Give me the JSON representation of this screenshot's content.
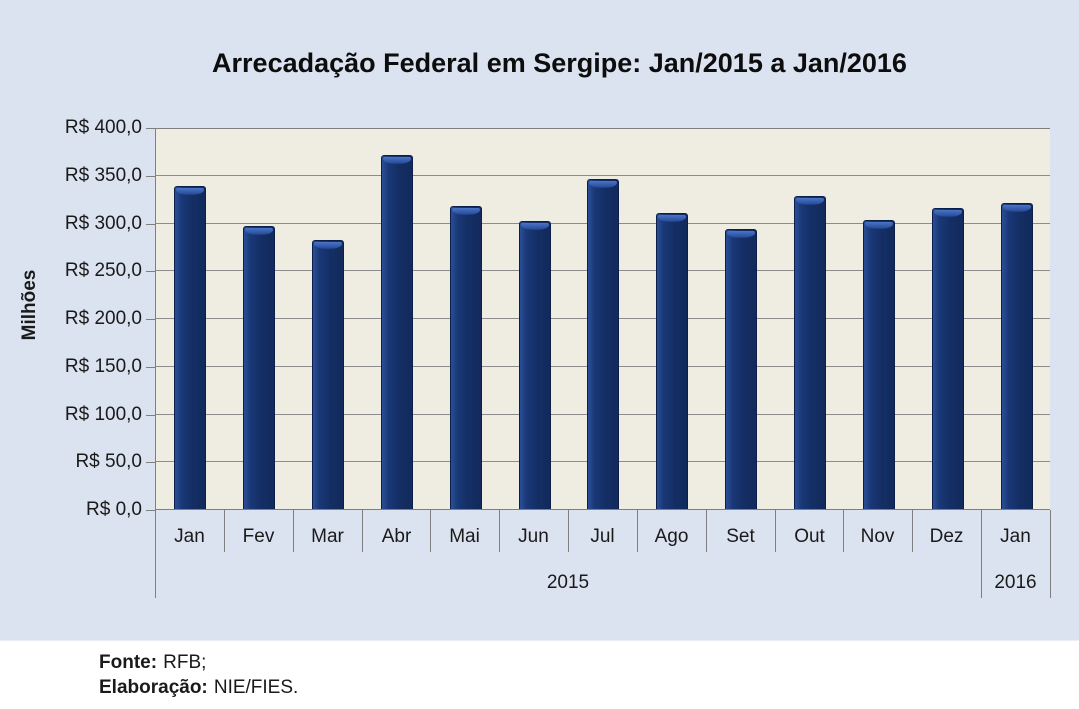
{
  "page": {
    "footer": {
      "source_label": "Fonte:",
      "source_text": "RFB;",
      "elaboration_label": "Elaboração:",
      "elaboration_text": "NIE/FIES."
    }
  },
  "chart_data": {
    "type": "bar",
    "title": "Arrecadação Federal em Sergipe: Jan/2015 a Jan/2016",
    "xlabel": "",
    "ylabel": "Milhões",
    "ylim": [
      0,
      400
    ],
    "grid": true,
    "legend": "none",
    "categories": [
      "Jan",
      "Fev",
      "Mar",
      "Abr",
      "Mai",
      "Jun",
      "Jul",
      "Ago",
      "Set",
      "Out",
      "Nov",
      "Dez",
      "Jan"
    ],
    "year_groups": [
      {
        "label": "2015",
        "start": 0,
        "count": 12
      },
      {
        "label": "2016",
        "start": 12,
        "count": 1
      }
    ],
    "values": [
      339,
      297,
      283,
      372,
      318,
      303,
      347,
      311,
      294,
      329,
      304,
      316,
      321
    ],
    "y_ticks": [
      {
        "v": 0,
        "label": "R$ 0,0"
      },
      {
        "v": 50,
        "label": "R$ 50,0"
      },
      {
        "v": 100,
        "label": "R$ 100,0"
      },
      {
        "v": 150,
        "label": "R$ 150,0"
      },
      {
        "v": 200,
        "label": "R$ 200,0"
      },
      {
        "v": 250,
        "label": "R$ 250,0"
      },
      {
        "v": 300,
        "label": "R$ 300,0"
      },
      {
        "v": 350,
        "label": "R$ 350,0"
      },
      {
        "v": 400,
        "label": "R$ 400,0"
      }
    ],
    "colors": {
      "bar": "#15306a",
      "bar_highlight": "#33589f",
      "plot_bg": "#efede1",
      "chart_bg": "#dbe3f0",
      "gridline": "#8c8c8c"
    }
  }
}
